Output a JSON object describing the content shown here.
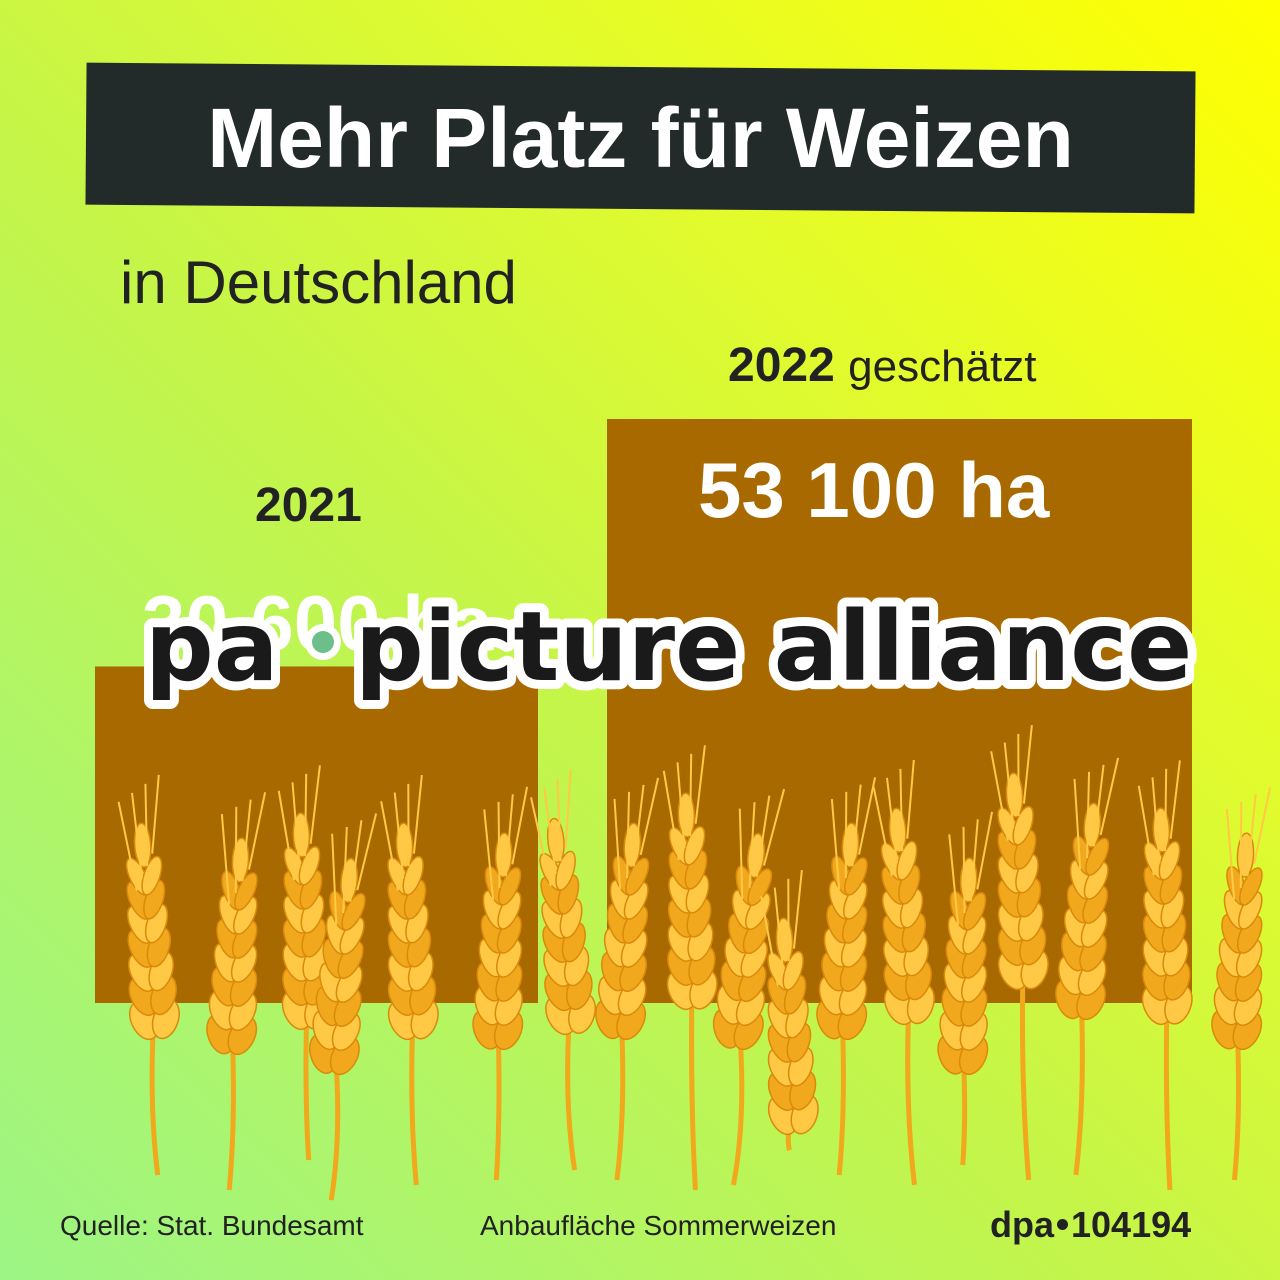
{
  "title": "Mehr Platz für Weizen",
  "subtitle": "in Deutschland",
  "colors": {
    "bar": "#a86a00",
    "title_bg": "#222a2a",
    "wheat": "#f2a81c",
    "wheat_dark": "#d98a0a",
    "wheat_light": "#ffc845",
    "watermark_dot": "#6dbf8a"
  },
  "chart_data": {
    "type": "bar",
    "categories": [
      "2021",
      "2022"
    ],
    "category_notes": [
      "",
      "geschätzt"
    ],
    "values": [
      30600,
      53100
    ],
    "value_labels": [
      "30 600 ha",
      "53 100 ha"
    ],
    "unit": "ha",
    "ylim": [
      0,
      53100
    ],
    "title": "Mehr Platz für Weizen"
  },
  "watermark": {
    "brand": "pa",
    "name": "picture alliance"
  },
  "footer": {
    "source": "Quelle: Stat. Bundesamt",
    "caption": "Anbaufläche Sommerweizen",
    "credit_brand": "dpa",
    "credit_id": "104194"
  }
}
